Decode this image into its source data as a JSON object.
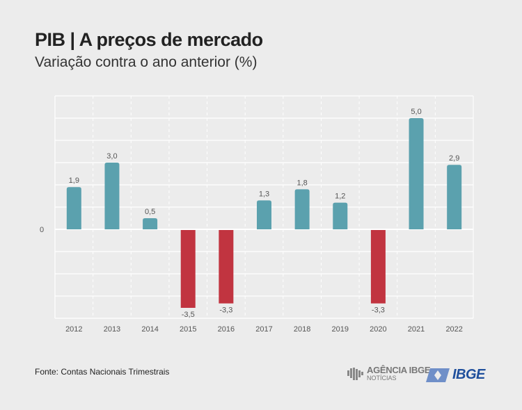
{
  "title": "PIB | A preços de mercado",
  "subtitle": "Variação contra o ano anterior (%)",
  "source": "Fonte: Contas Nacionais Trimestrais",
  "logos": {
    "agencia_line1": "AGÊNCIA IBGE",
    "agencia_line2": "NOTÍCIAS",
    "ibge": "IBGE"
  },
  "chart_data": {
    "type": "bar",
    "categories": [
      "2012",
      "2013",
      "2014",
      "2015",
      "2016",
      "2017",
      "2018",
      "2019",
      "2020",
      "2021",
      "2022"
    ],
    "values": [
      1.9,
      3.0,
      0.5,
      -3.5,
      -3.3,
      1.3,
      1.8,
      1.2,
      -3.3,
      5.0,
      2.9
    ],
    "labels": [
      "1,9",
      "3,0",
      "0,5",
      "-3,5",
      "-3,3",
      "1,3",
      "1,8",
      "1,2",
      "-3,3",
      "5,0",
      "2,9"
    ],
    "ylim": [
      -4,
      6
    ],
    "yticks": [
      "0"
    ],
    "grid": true,
    "colors": {
      "positive": "#5ba1ae",
      "negative": "#c13440"
    }
  }
}
